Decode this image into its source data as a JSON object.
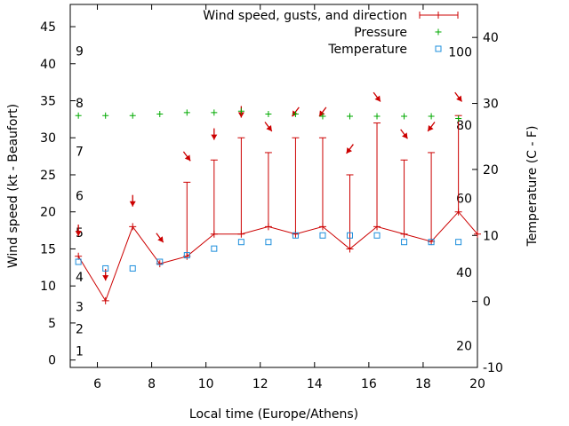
{
  "chart_data": {
    "type": "line",
    "title": "",
    "xlabel": "Local time (Europe/Athens)",
    "ylabel": "Wind speed (kt - Beaufort)",
    "y2label": "Temperature (C - F)",
    "xlim": [
      5,
      20
    ],
    "ylim": [
      -1,
      48
    ],
    "y2lim": [
      -10,
      45
    ],
    "x_ticks": [
      6,
      8,
      10,
      12,
      14,
      16,
      18,
      20
    ],
    "y_ticks": [
      0,
      5,
      10,
      15,
      20,
      25,
      30,
      35,
      40,
      45
    ],
    "y2_ticks": [
      -10,
      0,
      10,
      20,
      30,
      40
    ],
    "beaufort_labels": [
      {
        "label": "1",
        "y": 1.2
      },
      {
        "label": "2",
        "y": 4.2
      },
      {
        "label": "3",
        "y": 7.2
      },
      {
        "label": "4",
        "y": 11.2
      },
      {
        "label": "5",
        "y": 17.2
      },
      {
        "label": "6",
        "y": 22.2
      },
      {
        "label": "7",
        "y": 28.2
      },
      {
        "label": "8",
        "y": 34.7
      },
      {
        "label": "9",
        "y": 41.7
      }
    ],
    "fahrenheit_labels": [
      {
        "label": "20",
        "t": -6.7
      },
      {
        "label": "40",
        "t": 4.4
      },
      {
        "label": "60",
        "t": 15.6
      },
      {
        "label": "80",
        "t": 26.7
      },
      {
        "label": "100",
        "t": 37.8
      }
    ],
    "legend_position": "top-right",
    "series": [
      {
        "name": "Wind speed, gusts, and direction",
        "color": "#cc0000",
        "x": [
          5.3,
          6.3,
          7.3,
          8.3,
          9.3,
          10.3,
          11.3,
          12.3,
          13.3,
          14.3,
          15.3,
          16.3,
          17.3,
          18.3,
          19.3,
          20
        ],
        "y": [
          14,
          8,
          18,
          13,
          14,
          17,
          17,
          18,
          17,
          18,
          15,
          18,
          17,
          16,
          20,
          17
        ],
        "gusts": [
          null,
          null,
          null,
          null,
          24,
          27,
          30,
          28,
          30,
          30,
          25,
          32,
          27,
          28,
          33,
          null
        ],
        "arrows": [
          {
            "x": 5.3,
            "y": 17.5,
            "dir": "down"
          },
          {
            "x": 6.3,
            "y": 11.5,
            "dir": "down"
          },
          {
            "x": 7.3,
            "y": 21.5,
            "dir": "down"
          },
          {
            "x": 8.3,
            "y": 16.5,
            "dir": "down-right"
          },
          {
            "x": 9.3,
            "y": 27.5,
            "dir": "down-right"
          },
          {
            "x": 10.3,
            "y": 30.5,
            "dir": "down"
          },
          {
            "x": 11.3,
            "y": 33.5,
            "dir": "down"
          },
          {
            "x": 12.3,
            "y": 31.5,
            "dir": "down-right"
          },
          {
            "x": 13.3,
            "y": 33.5,
            "dir": "down-left"
          },
          {
            "x": 14.3,
            "y": 33.5,
            "dir": "down-left"
          },
          {
            "x": 15.3,
            "y": 28.5,
            "dir": "down-left"
          },
          {
            "x": 16.3,
            "y": 35.5,
            "dir": "down-right"
          },
          {
            "x": 17.3,
            "y": 30.5,
            "dir": "down-right"
          },
          {
            "x": 18.3,
            "y": 31.5,
            "dir": "down-left"
          },
          {
            "x": 19.3,
            "y": 35.5,
            "dir": "down-right"
          }
        ]
      },
      {
        "name": "Pressure",
        "color": "#00aa00",
        "x": [
          5.3,
          6.3,
          7.3,
          8.3,
          9.3,
          10.3,
          11.3,
          12.3,
          13.3,
          14.3,
          15.3,
          16.3,
          17.3,
          18.3,
          19.3
        ],
        "y": [
          33,
          33,
          33,
          33.2,
          33.4,
          33.4,
          33.6,
          33.2,
          33.2,
          32.9,
          32.9,
          32.9,
          32.9,
          32.9,
          32.6
        ]
      },
      {
        "name": "Temperature",
        "color": "#1e8fdc",
        "x": [
          5.3,
          6.3,
          7.3,
          8.3,
          9.3,
          10.3,
          11.3,
          12.3,
          13.3,
          14.3,
          15.3,
          16.3,
          17.3,
          18.3,
          19.3
        ],
        "y": [
          6,
          5,
          5,
          6,
          7,
          8,
          9,
          9,
          10,
          10,
          10,
          10,
          9,
          9,
          9
        ]
      }
    ]
  }
}
